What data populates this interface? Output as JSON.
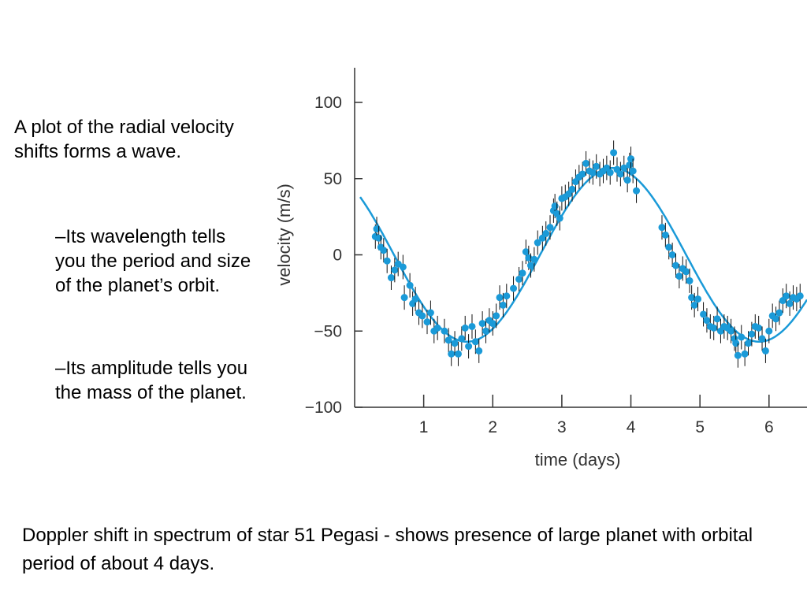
{
  "slide": {
    "intro": "A plot of the radial velocity shifts forms a wave.",
    "bullets": [
      "–Its wavelength tells you the period and size of the planet’s orbit.",
      "–Its amplitude tells you the mass of the planet."
    ],
    "caption": "Doppler shift in spectrum of star 51 Pegasi - shows presence of large planet with orbital period of about 4 days."
  },
  "colors": {
    "data": "#1a9ad8",
    "axis": "#333333",
    "errorbar": "#111111"
  },
  "chart_data": {
    "type": "scatter",
    "title": "",
    "xlabel": "time (days)",
    "ylabel": "velocity (m/s)",
    "xlim": [
      0,
      6.55
    ],
    "ylim": [
      -100,
      100
    ],
    "xticks": [
      1,
      2,
      3,
      4,
      5,
      6
    ],
    "yticks": [
      100,
      50,
      0,
      -50,
      -100
    ],
    "ytick_labels": [
      "100",
      "50",
      "0",
      "−50",
      "−100"
    ],
    "grid": false,
    "fit": {
      "type": "sinusoid",
      "amplitude": 57,
      "period_days": 4.23,
      "phase_zero_crossing_day": 0.57,
      "x_range": [
        0.08,
        6.55
      ]
    },
    "error_bar_halfwidth": 8,
    "points": [
      {
        "x": 0.3,
        "y": 12
      },
      {
        "x": 0.32,
        "y": 17
      },
      {
        "x": 0.35,
        "y": 11
      },
      {
        "x": 0.38,
        "y": 5
      },
      {
        "x": 0.42,
        "y": 3
      },
      {
        "x": 0.47,
        "y": -4
      },
      {
        "x": 0.53,
        "y": -15
      },
      {
        "x": 0.58,
        "y": -10
      },
      {
        "x": 0.63,
        "y": -6
      },
      {
        "x": 0.7,
        "y": -8
      },
      {
        "x": 0.72,
        "y": -28
      },
      {
        "x": 0.8,
        "y": -20
      },
      {
        "x": 0.84,
        "y": -32
      },
      {
        "x": 0.88,
        "y": -29
      },
      {
        "x": 0.93,
        "y": -38
      },
      {
        "x": 0.98,
        "y": -40
      },
      {
        "x": 1.05,
        "y": -44
      },
      {
        "x": 1.1,
        "y": -38
      },
      {
        "x": 1.15,
        "y": -50
      },
      {
        "x": 1.2,
        "y": -48
      },
      {
        "x": 1.3,
        "y": -50
      },
      {
        "x": 1.36,
        "y": -56
      },
      {
        "x": 1.4,
        "y": -65
      },
      {
        "x": 1.45,
        "y": -58
      },
      {
        "x": 1.5,
        "y": -65
      },
      {
        "x": 1.55,
        "y": -55
      },
      {
        "x": 1.6,
        "y": -48
      },
      {
        "x": 1.65,
        "y": -60
      },
      {
        "x": 1.7,
        "y": -47
      },
      {
        "x": 1.75,
        "y": -57
      },
      {
        "x": 1.8,
        "y": -63
      },
      {
        "x": 1.85,
        "y": -45
      },
      {
        "x": 1.9,
        "y": -50
      },
      {
        "x": 1.95,
        "y": -43
      },
      {
        "x": 2.0,
        "y": -45
      },
      {
        "x": 2.05,
        "y": -40
      },
      {
        "x": 2.1,
        "y": -28
      },
      {
        "x": 2.15,
        "y": -33
      },
      {
        "x": 2.2,
        "y": -27
      },
      {
        "x": 2.3,
        "y": -22
      },
      {
        "x": 2.38,
        "y": -16
      },
      {
        "x": 2.43,
        "y": -12
      },
      {
        "x": 2.48,
        "y": 2
      },
      {
        "x": 2.52,
        "y": -2
      },
      {
        "x": 2.55,
        "y": -7
      },
      {
        "x": 2.6,
        "y": -3
      },
      {
        "x": 2.65,
        "y": 8
      },
      {
        "x": 2.72,
        "y": 11
      },
      {
        "x": 2.77,
        "y": 14
      },
      {
        "x": 2.83,
        "y": 18
      },
      {
        "x": 2.88,
        "y": 29
      },
      {
        "x": 2.9,
        "y": 32
      },
      {
        "x": 2.93,
        "y": 27
      },
      {
        "x": 2.97,
        "y": 24
      },
      {
        "x": 3.0,
        "y": 37
      },
      {
        "x": 3.05,
        "y": 38
      },
      {
        "x": 3.1,
        "y": 40
      },
      {
        "x": 3.15,
        "y": 43
      },
      {
        "x": 3.2,
        "y": 48
      },
      {
        "x": 3.25,
        "y": 51
      },
      {
        "x": 3.3,
        "y": 53
      },
      {
        "x": 3.35,
        "y": 60
      },
      {
        "x": 3.4,
        "y": 55
      },
      {
        "x": 3.45,
        "y": 54
      },
      {
        "x": 3.5,
        "y": 58
      },
      {
        "x": 3.55,
        "y": 53
      },
      {
        "x": 3.6,
        "y": 55
      },
      {
        "x": 3.65,
        "y": 57
      },
      {
        "x": 3.7,
        "y": 54
      },
      {
        "x": 3.75,
        "y": 67
      },
      {
        "x": 3.8,
        "y": 56
      },
      {
        "x": 3.85,
        "y": 53
      },
      {
        "x": 3.9,
        "y": 57
      },
      {
        "x": 3.95,
        "y": 49
      },
      {
        "x": 3.98,
        "y": 59
      },
      {
        "x": 4.0,
        "y": 63
      },
      {
        "x": 4.03,
        "y": 55
      },
      {
        "x": 4.08,
        "y": 42
      },
      {
        "x": 4.45,
        "y": 18
      },
      {
        "x": 4.5,
        "y": 13
      },
      {
        "x": 4.55,
        "y": 5
      },
      {
        "x": 4.6,
        "y": 0
      },
      {
        "x": 4.65,
        "y": -7
      },
      {
        "x": 4.7,
        "y": -14
      },
      {
        "x": 4.75,
        "y": -9
      },
      {
        "x": 4.8,
        "y": -11
      },
      {
        "x": 4.85,
        "y": -17
      },
      {
        "x": 4.88,
        "y": -28
      },
      {
        "x": 4.92,
        "y": -33
      },
      {
        "x": 4.97,
        "y": -29
      },
      {
        "x": 5.05,
        "y": -39
      },
      {
        "x": 5.1,
        "y": -43
      },
      {
        "x": 5.15,
        "y": -47
      },
      {
        "x": 5.2,
        "y": -48
      },
      {
        "x": 5.25,
        "y": -42
      },
      {
        "x": 5.3,
        "y": -50
      },
      {
        "x": 5.35,
        "y": -47
      },
      {
        "x": 5.4,
        "y": -48
      },
      {
        "x": 5.45,
        "y": -50
      },
      {
        "x": 5.5,
        "y": -55
      },
      {
        "x": 5.52,
        "y": -58
      },
      {
        "x": 5.55,
        "y": -66
      },
      {
        "x": 5.6,
        "y": -54
      },
      {
        "x": 5.65,
        "y": -65
      },
      {
        "x": 5.7,
        "y": -58
      },
      {
        "x": 5.75,
        "y": -52
      },
      {
        "x": 5.8,
        "y": -47
      },
      {
        "x": 5.85,
        "y": -48
      },
      {
        "x": 5.9,
        "y": -55
      },
      {
        "x": 5.95,
        "y": -63
      },
      {
        "x": 6.0,
        "y": -50
      },
      {
        "x": 6.05,
        "y": -40
      },
      {
        "x": 6.1,
        "y": -42
      },
      {
        "x": 6.15,
        "y": -38
      },
      {
        "x": 6.2,
        "y": -30
      },
      {
        "x": 6.25,
        "y": -27
      },
      {
        "x": 6.3,
        "y": -32
      },
      {
        "x": 6.35,
        "y": -28
      },
      {
        "x": 6.4,
        "y": -29
      },
      {
        "x": 6.45,
        "y": -27
      }
    ]
  }
}
